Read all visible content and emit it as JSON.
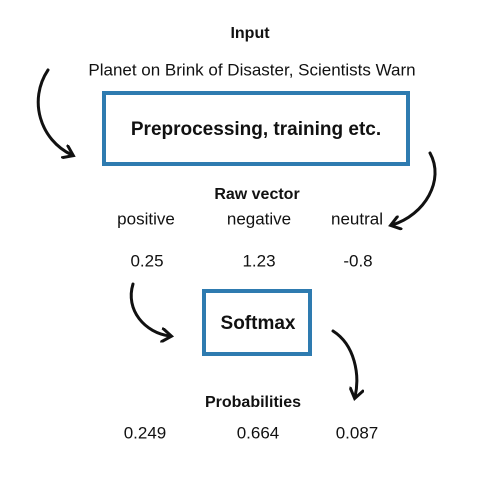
{
  "input": {
    "title": "Input",
    "text": "Planet on Brink of Disaster, Scientists Warn"
  },
  "preprocessing": {
    "label": "Preprocessing, training etc."
  },
  "raw_vector": {
    "title": "Raw vector",
    "labels": [
      "positive",
      "negative",
      "neutral"
    ],
    "values": [
      0.25,
      1.23,
      -0.8
    ]
  },
  "softmax": {
    "label": "Softmax"
  },
  "probabilities": {
    "title": "Probabilities",
    "values": [
      0.249,
      0.664,
      0.087
    ]
  }
}
